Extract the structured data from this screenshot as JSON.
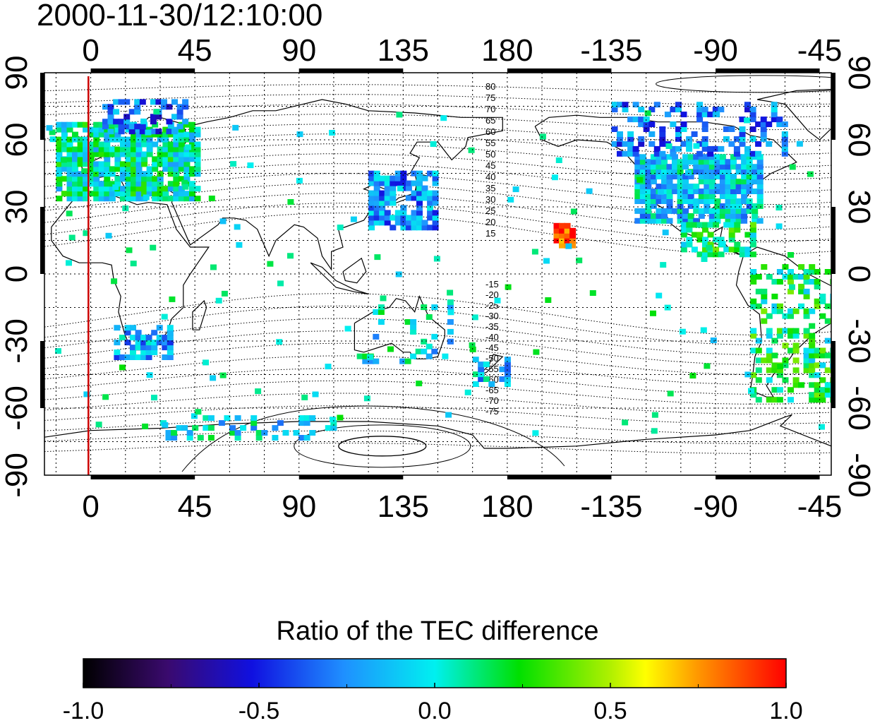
{
  "title": "2000-11-30/12:10:00",
  "colorbar": {
    "title": "Ratio of the TEC difference",
    "ticks": [
      "-1.0",
      "-0.5",
      "0.0",
      "0.5",
      "1.0"
    ],
    "min": -1.0,
    "max": 1.0
  },
  "map": {
    "projection": "equirectangular",
    "lon_start": -20,
    "lon_end": 320,
    "lat_range": [
      -90,
      90
    ],
    "lon_tick_labels": [
      "0",
      "45",
      "90",
      "135",
      "180",
      "-135",
      "-90",
      "-45"
    ],
    "lat_tick_labels_left": [
      "90",
      "60",
      "30",
      "0",
      "-30",
      "-60",
      "-90"
    ],
    "lat_tick_labels_right": [
      "90",
      "60",
      "30",
      "0",
      "-30",
      "-60",
      "-90"
    ],
    "grid": true,
    "marker_line": {
      "lon": -1,
      "color": "#cc0000"
    },
    "magnetic_contour_labels_north": [
      "80",
      "75",
      "70",
      "65",
      "60",
      "55",
      "50",
      "45",
      "40",
      "35",
      "30",
      "25",
      "20",
      "15"
    ],
    "magnetic_contour_labels_south": [
      "-15",
      "-20",
      "-25",
      "-30",
      "-35",
      "-40",
      "-45",
      "-50",
      "-55",
      "-60",
      "-65",
      "-70",
      "-75"
    ]
  },
  "tec_ratio_clusters": [
    {
      "region": "europe",
      "lon": [
        -15,
        45
      ],
      "lat": [
        35,
        70
      ],
      "ratio": 0.05,
      "density": 0.85
    },
    {
      "region": "scandinavia-north",
      "lon": [
        5,
        40
      ],
      "lat": [
        65,
        80
      ],
      "ratio": -0.35,
      "density": 0.4
    },
    {
      "region": "east-asia",
      "lon": [
        120,
        148
      ],
      "lat": [
        22,
        48
      ],
      "ratio": -0.25,
      "density": 0.8
    },
    {
      "region": "north-america",
      "lon": [
        235,
        290
      ],
      "lat": [
        25,
        55
      ],
      "ratio": -0.1,
      "density": 0.85
    },
    {
      "region": "north-america-north",
      "lon": [
        225,
        300
      ],
      "lat": [
        55,
        78
      ],
      "ratio": -0.3,
      "density": 0.35
    },
    {
      "region": "central-america",
      "lon": [
        255,
        285
      ],
      "lat": [
        10,
        25
      ],
      "ratio": 0.15,
      "density": 0.5
    },
    {
      "region": "south-america",
      "lon": [
        285,
        320
      ],
      "lat": [
        -55,
        5
      ],
      "ratio": 0.15,
      "density": 0.35
    },
    {
      "region": "southern-africa",
      "lon": [
        10,
        35
      ],
      "lat": [
        -36,
        -22
      ],
      "ratio": -0.2,
      "density": 0.6
    },
    {
      "region": "new-zealand",
      "lon": [
        165,
        180
      ],
      "lat": [
        -48,
        -36
      ],
      "ratio": -0.15,
      "density": 0.55
    },
    {
      "region": "antarctica",
      "lon": [
        30,
        110
      ],
      "lat": [
        -72,
        -62
      ],
      "ratio": -0.05,
      "density": 0.3
    },
    {
      "region": "australia",
      "lon": [
        115,
        155
      ],
      "lat": [
        -40,
        -10
      ],
      "ratio": -0.05,
      "density": 0.15
    },
    {
      "region": "hawaii",
      "lon": [
        200,
        207
      ],
      "lat": [
        14,
        24
      ],
      "ratio": 0.95,
      "density": 0.9
    }
  ]
}
